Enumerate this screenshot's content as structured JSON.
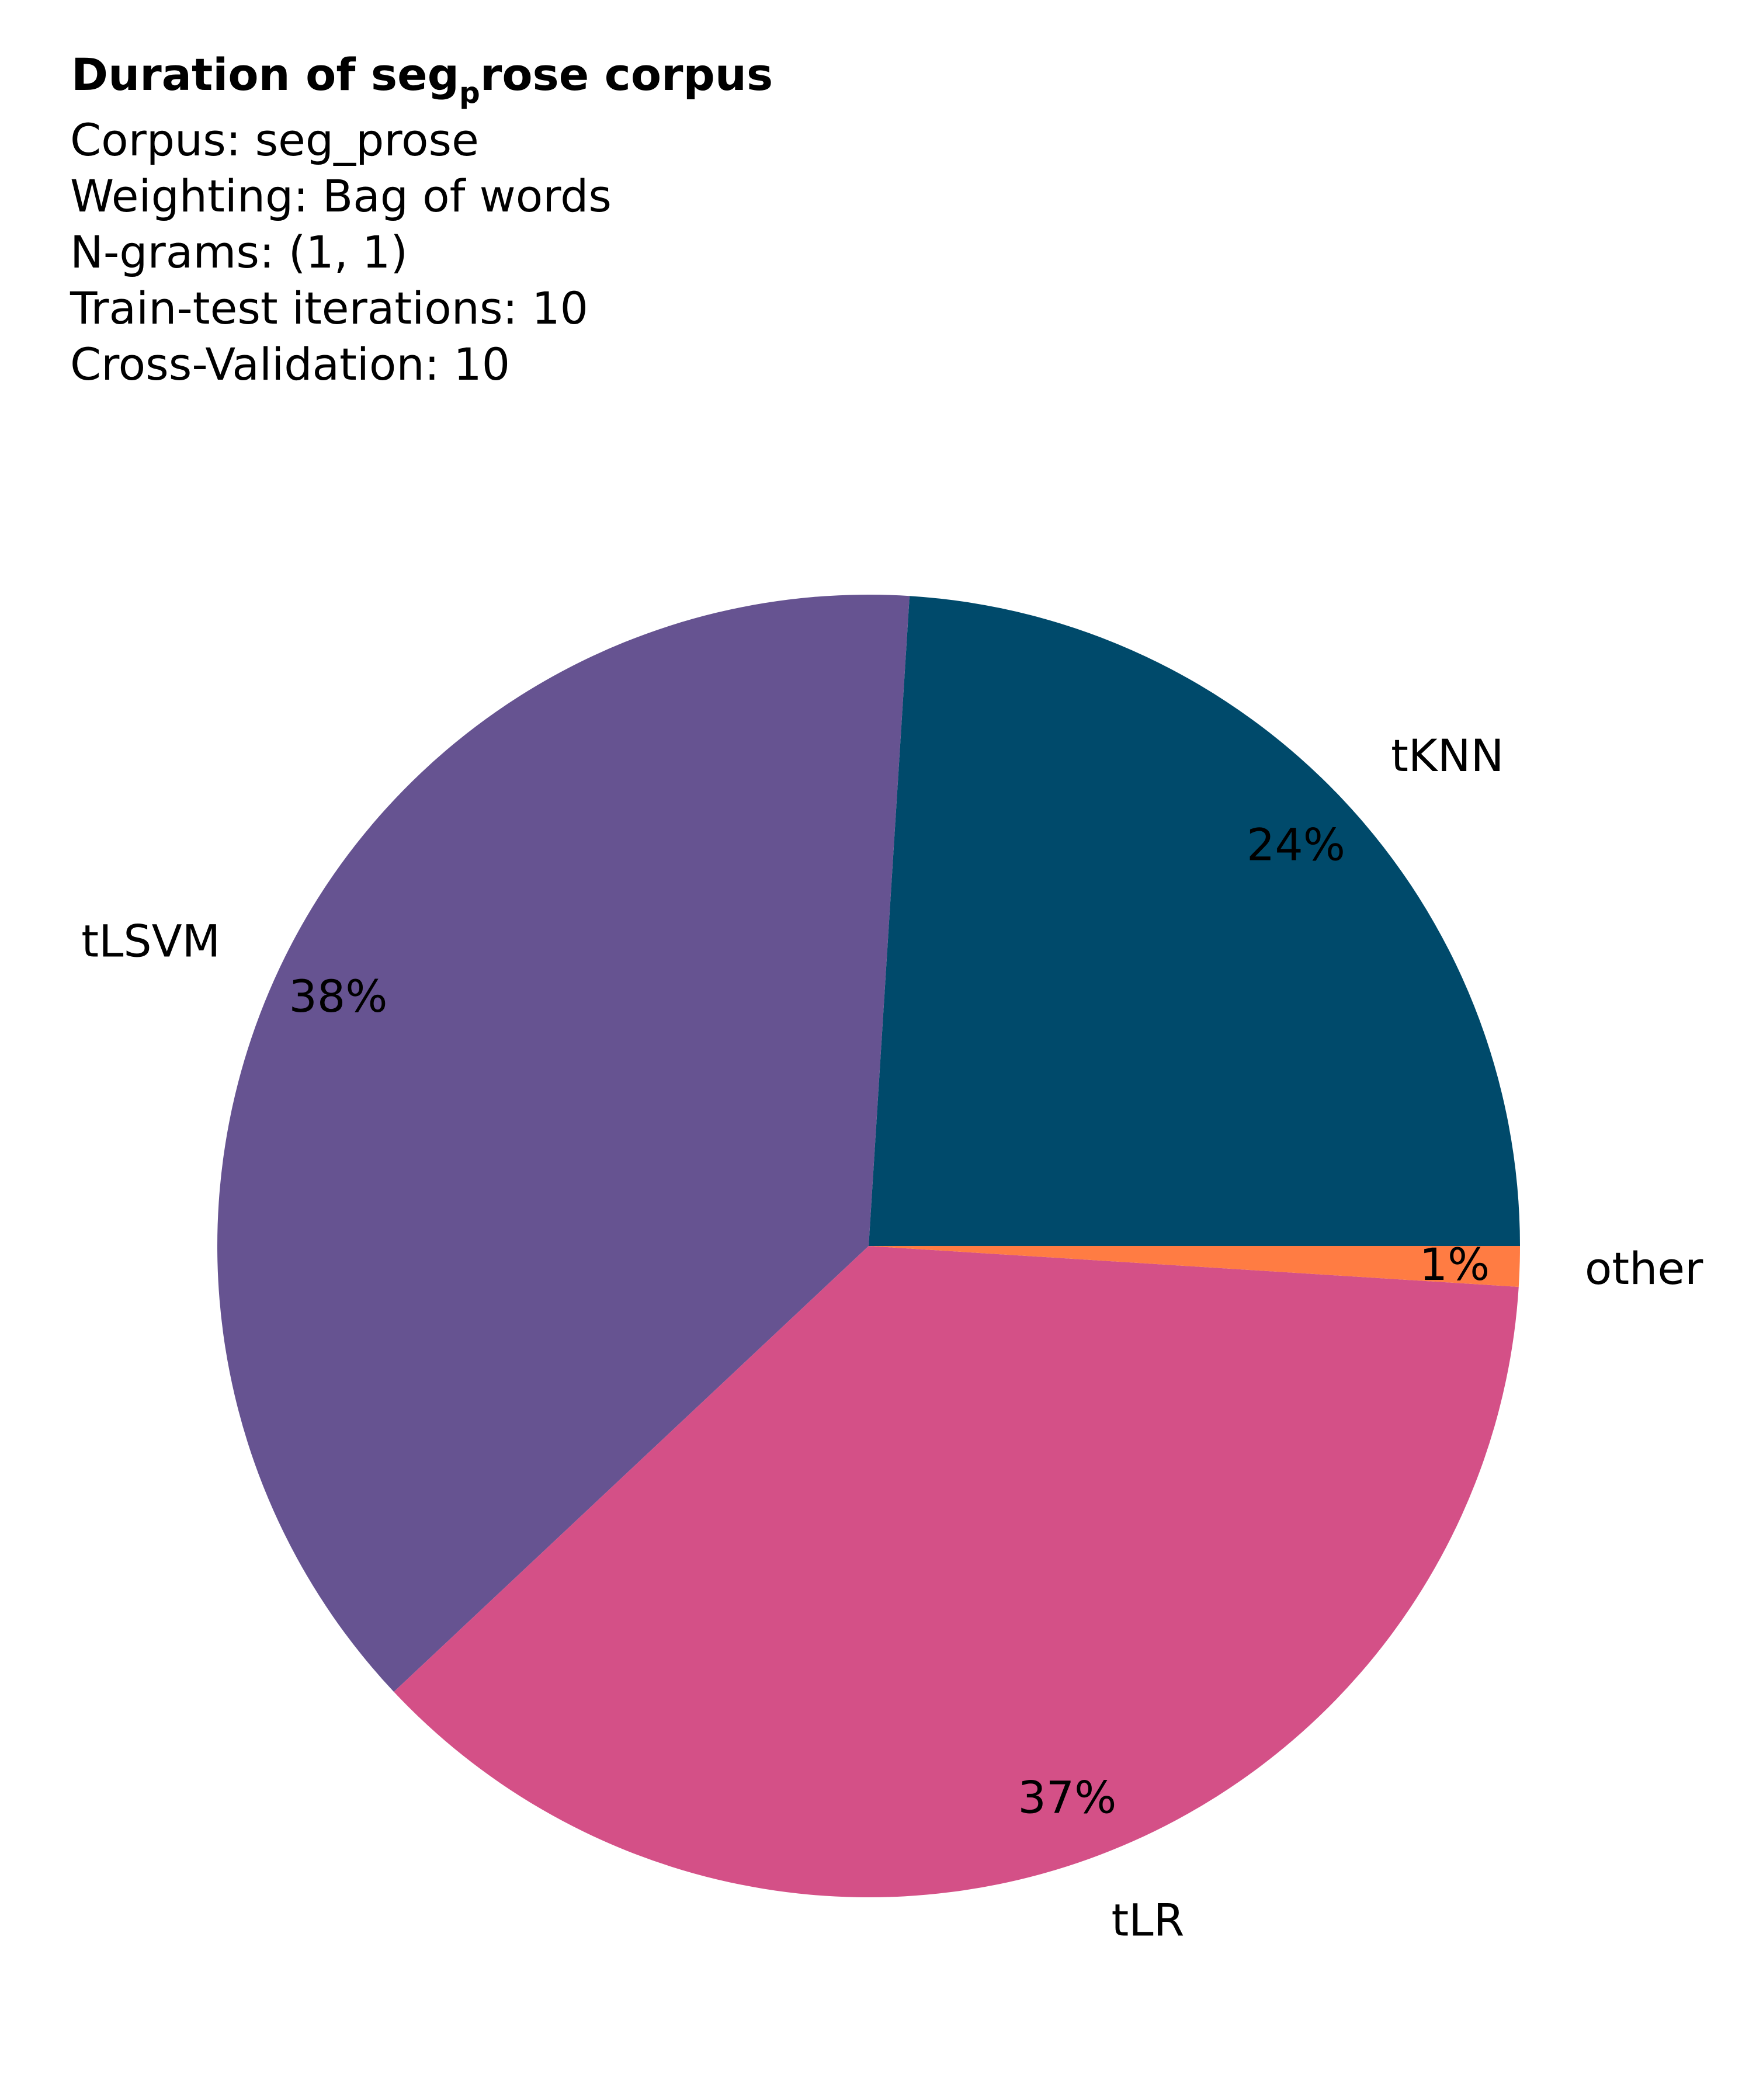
{
  "chart_data": {
    "type": "pie",
    "title": {
      "prefix": "Duration of seg",
      "subscript": "p",
      "suffix": "rose corpus"
    },
    "info_lines": [
      "Corpus: seg_prose",
      "Weighting: Bag of words",
      "N-grams: (1, 1)",
      "Train-test iterations: 10",
      "Cross-Validation: 10"
    ],
    "slices": [
      {
        "label": "tKNN",
        "value": 24,
        "pct_label": "24%",
        "color": "#004a6b"
      },
      {
        "label": "tLSVM",
        "value": 38,
        "pct_label": "38%",
        "color": "#665391"
      },
      {
        "label": "tLR",
        "value": 37,
        "pct_label": "37%",
        "color": "#d45087"
      },
      {
        "label": "other",
        "value": 1,
        "pct_label": "1%",
        "color": "#ff7c43"
      }
    ],
    "start_angle_deg": 0,
    "direction": "counterclockwise"
  }
}
